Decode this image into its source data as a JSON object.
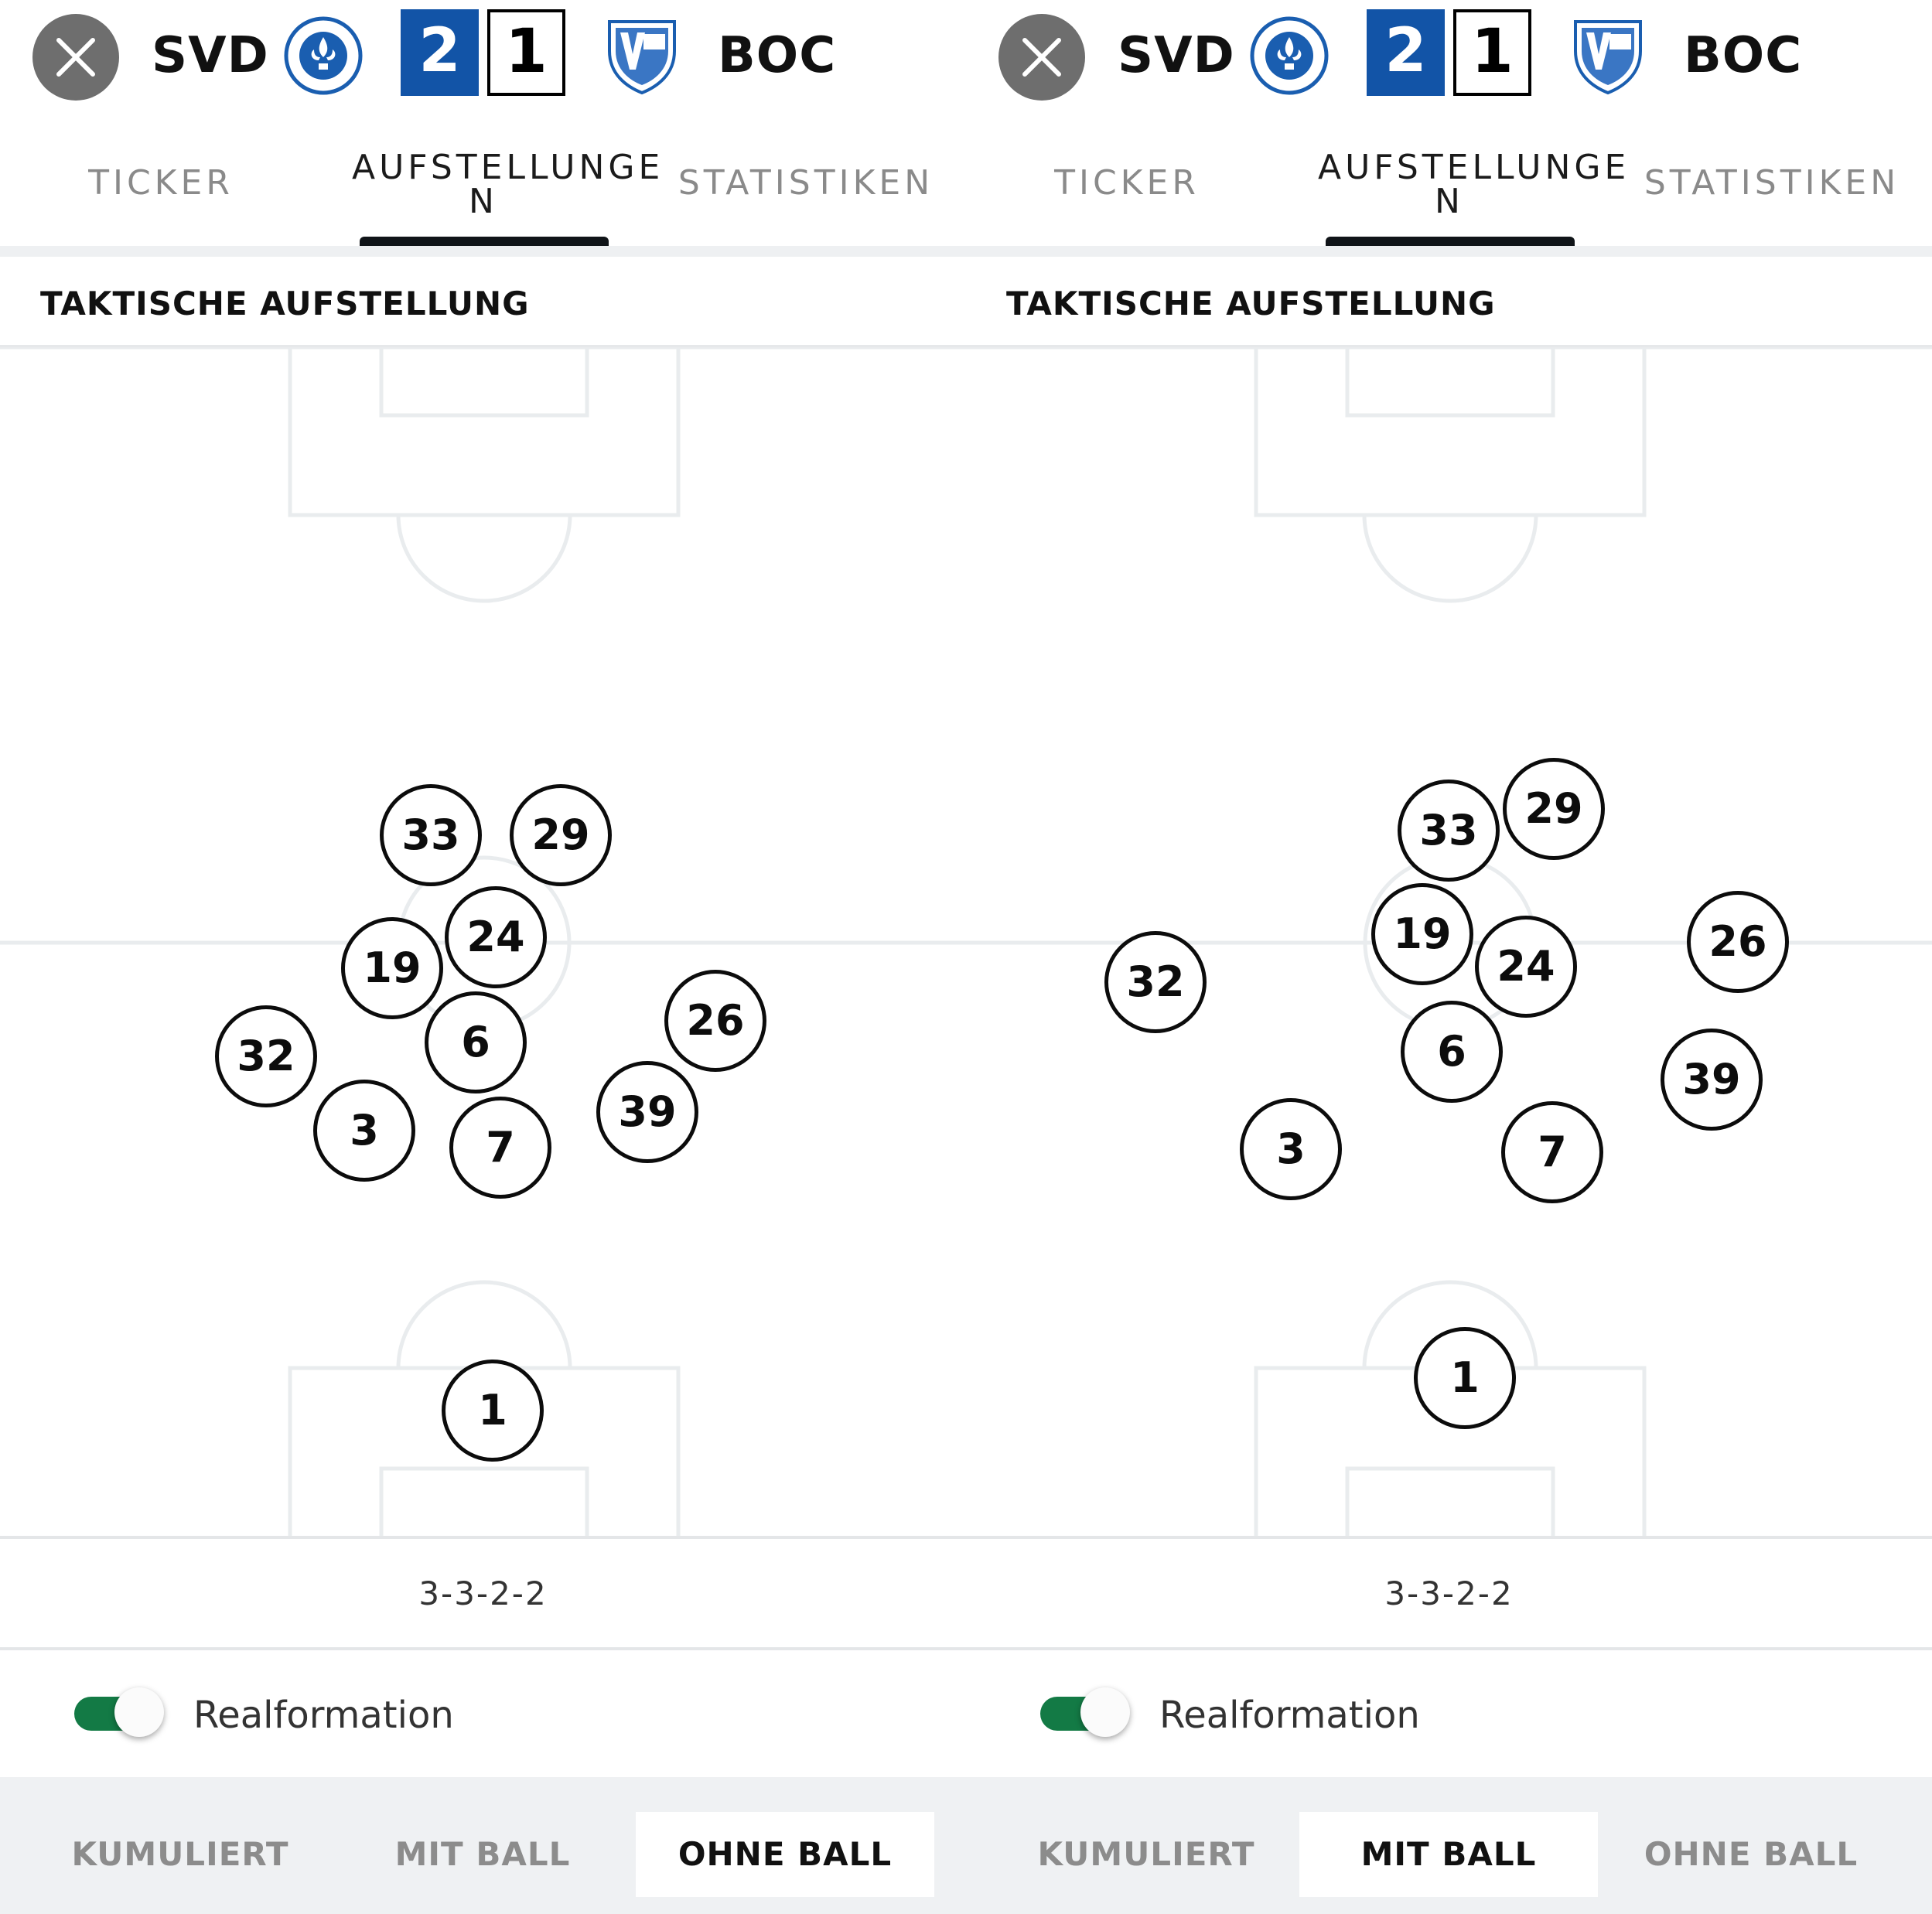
{
  "panels": [
    {
      "header": {
        "home_code": "SVD",
        "away_code": "BOC",
        "home_score": "2",
        "away_score": "1"
      },
      "tabs": [
        {
          "label": "TICKER"
        },
        {
          "label": "AUFSTELLUNGE\nN"
        },
        {
          "label": "STATISTIKEN"
        }
      ],
      "active_tab": "AUFSTELLUNGE\nN",
      "section_title": "TAKTISCHE AUFSTELLUNG",
      "players": [
        "33",
        "29",
        "24",
        "19",
        "32",
        "6",
        "26",
        "3",
        "7",
        "39",
        "1"
      ],
      "formation": "3-3-2-2",
      "toggle": {
        "label": "Realformation",
        "on": true
      },
      "segments": [
        {
          "label": "KUMULIERT"
        },
        {
          "label": "MIT BALL"
        },
        {
          "label": "OHNE BALL"
        }
      ],
      "active_segment": "OHNE BALL"
    },
    {
      "header": {
        "home_code": "SVD",
        "away_code": "BOC",
        "home_score": "2",
        "away_score": "1"
      },
      "tabs": [
        {
          "label": "TICKER"
        },
        {
          "label": "AUFSTELLUNGE\nN"
        },
        {
          "label": "STATISTIKEN"
        }
      ],
      "active_tab": "AUFSTELLUNGE\nN",
      "section_title": "TAKTISCHE AUFSTELLUNG",
      "players": [
        "29",
        "33",
        "19",
        "24",
        "26",
        "32",
        "6",
        "39",
        "3",
        "7",
        "1"
      ],
      "formation": "3-3-2-2",
      "toggle": {
        "label": "Realformation",
        "on": true
      },
      "segments": [
        {
          "label": "KUMULIERT"
        },
        {
          "label": "MIT BALL"
        },
        {
          "label": "OHNE BALL"
        }
      ],
      "active_segment": "MIT BALL"
    }
  ],
  "colors": {
    "score_home_bg": "#1254a7",
    "toggle_on": "#137a45",
    "close_button": "#6e6e6e",
    "pitch_lines": "#e9ecee"
  },
  "icons": {
    "close": "close-icon",
    "home_crest": "darmstadt-crest-icon",
    "away_crest": "bochum-crest-icon"
  }
}
